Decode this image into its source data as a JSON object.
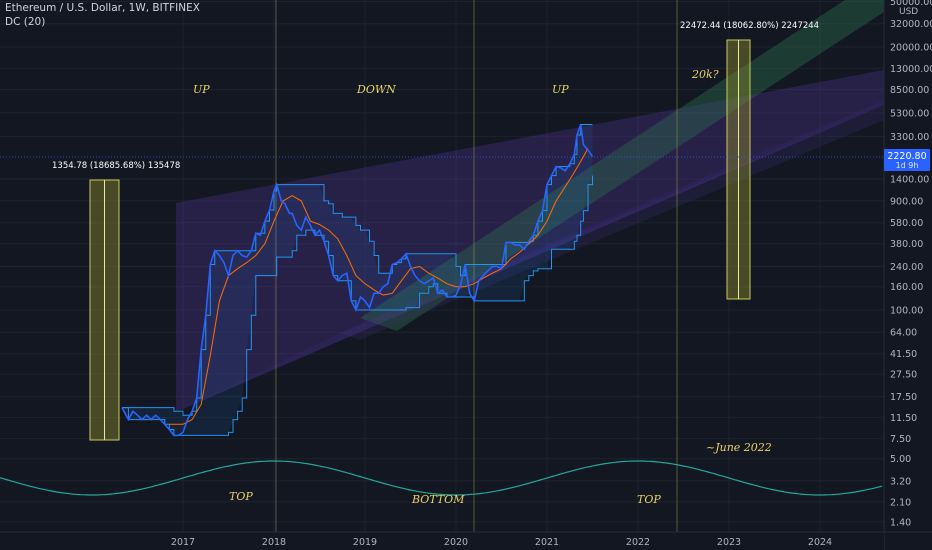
{
  "header": {
    "symbol": "Ethereum / U.S. Dollar, 1W, BITFINEX",
    "indicator": "DC (20)"
  },
  "price_axis": {
    "currency": "USD",
    "ticks": [
      "50000.00",
      "32000.00",
      "20000.00",
      "13000.00",
      "8500.00",
      "5300.00",
      "3300.00",
      "2220.80",
      "1400.00",
      "900.00",
      "580.00",
      "380.00",
      "240.00",
      "160.00",
      "100.00",
      "64.00",
      "41.50",
      "27.50",
      "17.50",
      "11.50",
      "7.50",
      "5.00",
      "3.20",
      "2.10",
      "1.40"
    ],
    "last_price": "2220.80",
    "countdown": "1d 9h"
  },
  "time_axis": {
    "labels": [
      "2017",
      "2018",
      "2019",
      "2020",
      "2021",
      "2022",
      "2023",
      "2024"
    ]
  },
  "annotations": {
    "up1": "UP",
    "down": "DOWN",
    "up2": "UP",
    "target": "20k?",
    "top1": "TOP",
    "bottom": "BOTTOM",
    "top2": "TOP",
    "june": "~June 2022",
    "measure1": "1354.78 (18685.68%) 135478",
    "measure2": "22472.44 (18062.80%) 2247244"
  },
  "colors": {
    "background": "#131722",
    "price_line": "#2962ff",
    "donchian_band": "#2196f3",
    "basis_line": "#ff6d00",
    "last_price_label": "#2962ff",
    "cycle_wave": "#26a69a",
    "annotation_text": "#e8d36a"
  },
  "chart_data": {
    "type": "line",
    "title": "Ethereum / U.S. Dollar, 1W, BITFINEX",
    "y_scale": "log",
    "ylim": [
      1.4,
      50000
    ],
    "xlim": [
      2016.2,
      2024.6
    ],
    "series": [
      {
        "name": "",
        "x": [
          2016.33,
          2016.4,
          2016.45,
          2016.5,
          2016.55,
          2016.6,
          2016.65,
          2016.7,
          2016.75,
          2016.8,
          2016.85,
          2016.9,
          2016.95,
          2017.0,
          2017.05,
          2017.1,
          2017.15,
          2017.2,
          2017.25,
          2017.3,
          2017.35,
          2017.4,
          2017.45,
          2017.5,
          2017.55,
          2017.6,
          2017.65,
          2017.7,
          2017.75,
          2017.8,
          2017.85,
          2017.9,
          2017.95,
          2018.0,
          2018.03,
          2018.08,
          2018.12,
          2018.17,
          2018.2,
          2018.25,
          2018.3,
          2018.35,
          2018.4,
          2018.45,
          2018.5,
          2018.55,
          2018.6,
          2018.65,
          2018.7,
          2018.75,
          2018.8,
          2018.85,
          2018.9,
          2018.95,
          2019.0,
          2019.05,
          2019.1,
          2019.15,
          2019.2,
          2019.25,
          2019.3,
          2019.35,
          2019.4,
          2019.45,
          2019.5,
          2019.55,
          2019.6,
          2019.65,
          2019.7,
          2019.75,
          2019.8,
          2019.85,
          2019.9,
          2019.95,
          2020.0,
          2020.05,
          2020.1,
          2020.15,
          2020.2,
          2020.25,
          2020.3,
          2020.35,
          2020.4,
          2020.45,
          2020.5,
          2020.55,
          2020.6,
          2020.65,
          2020.7,
          2020.75,
          2020.8,
          2020.85,
          2020.9,
          2020.95,
          2021.0,
          2021.05,
          2021.1,
          2021.15,
          2021.2,
          2021.25,
          2021.3,
          2021.33,
          2021.37,
          2021.4,
          2021.45,
          2021.5
        ],
        "values": [
          14,
          11,
          13,
          12,
          11,
          12,
          11,
          12,
          11,
          10,
          9,
          8,
          8,
          8.5,
          11,
          13,
          17,
          45,
          90,
          250,
          330,
          300,
          260,
          200,
          300,
          330,
          300,
          290,
          330,
          470,
          450,
          600,
          750,
          1100,
          1250,
          900,
          850,
          700,
          700,
          550,
          500,
          650,
          550,
          450,
          500,
          400,
          300,
          200,
          180,
          200,
          210,
          120,
          100,
          130,
          120,
          105,
          140,
          140,
          160,
          170,
          250,
          260,
          280,
          310,
          240,
          200,
          180,
          170,
          180,
          190,
          140,
          150,
          130,
          130,
          135,
          165,
          250,
          140,
          120,
          180,
          200,
          220,
          240,
          240,
          230,
          390,
          390,
          370,
          370,
          340,
          400,
          450,
          600,
          740,
          1250,
          1500,
          1800,
          1750,
          1650,
          1900,
          2300,
          3400,
          4200,
          2800,
          2500,
          2200
        ]
      },
      {
        "name": "",
        "x": [
          2016.85,
          2017.0,
          2017.1,
          2017.2,
          2017.3,
          2017.4,
          2017.5,
          2017.6,
          2017.7,
          2017.8,
          2017.9,
          2018.0,
          2018.1,
          2018.2,
          2018.3,
          2018.4,
          2018.5,
          2018.6,
          2018.7,
          2018.8,
          2018.9,
          2019.0,
          2019.1,
          2019.2,
          2019.3,
          2019.4,
          2019.5,
          2019.6,
          2019.7,
          2019.8,
          2019.9,
          2020.0,
          2020.1,
          2020.2,
          2020.3,
          2020.4,
          2020.5,
          2020.6,
          2020.7,
          2020.8,
          2020.9,
          2021.0,
          2021.1,
          2021.2,
          2021.3,
          2021.4,
          2021.45
        ],
        "values": [
          10,
          10,
          11,
          15,
          40,
          120,
          200,
          230,
          260,
          300,
          380,
          600,
          900,
          1000,
          900,
          600,
          560,
          500,
          420,
          300,
          200,
          170,
          150,
          135,
          140,
          180,
          230,
          240,
          210,
          190,
          170,
          160,
          160,
          170,
          190,
          210,
          230,
          280,
          320,
          380,
          450,
          600,
          900,
          1200,
          1600,
          2200,
          2600
        ]
      }
    ]
  }
}
